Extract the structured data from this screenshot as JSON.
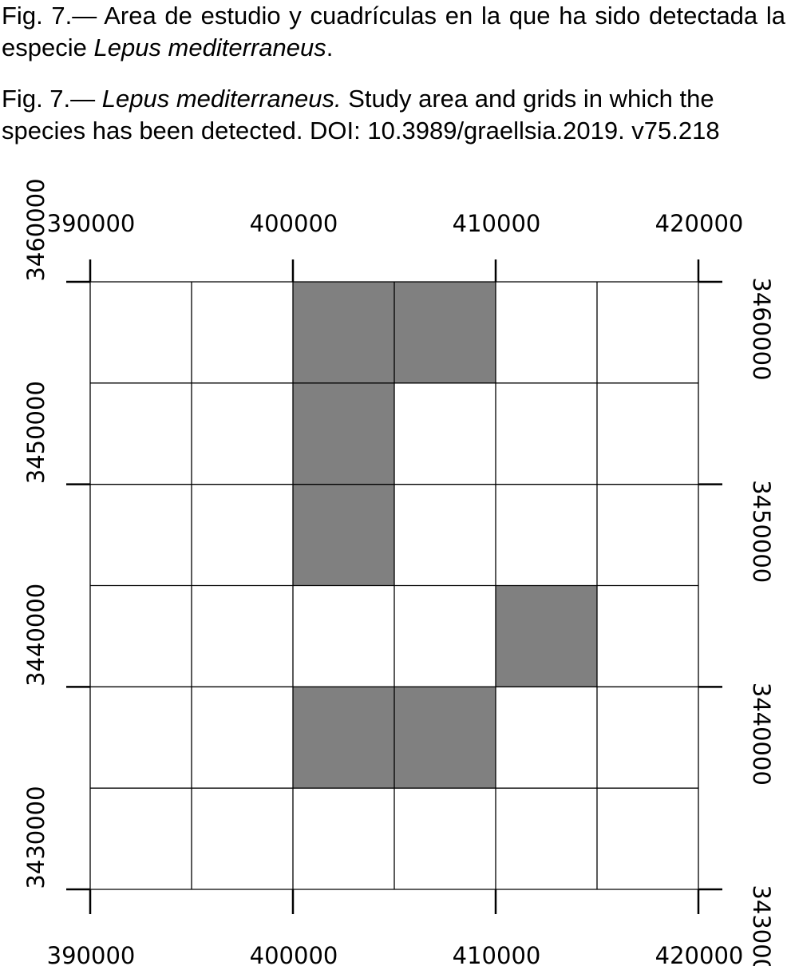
{
  "caption_es": {
    "prefix": "Fig. 7.— Area de estudio y cuadrículas en la que ha sido detectada la especie ",
    "species": "Lepus mediterraneus",
    "suffix": "."
  },
  "caption_en": {
    "prefix": "Fig. 7.— ",
    "species": "Lepus mediterraneus.",
    "suffix": " Study area and grids in which the species has been detected. DOI: 10.3989/graellsia.2019. v75.218"
  },
  "map": {
    "x_range": [
      390000,
      420000
    ],
    "y_range": [
      3430000,
      3460000
    ],
    "cell_size": 5000,
    "x_ticks": [
      390000,
      400000,
      410000,
      420000
    ],
    "y_ticks": [
      3430000,
      3440000,
      3450000,
      3460000
    ],
    "x_tick_labels": [
      "390000",
      "400000",
      "410000",
      "420000"
    ],
    "y_tick_labels": [
      "3430000",
      "3440000",
      "3450000",
      "3460000"
    ],
    "detected_color": "#808080",
    "empty_color": "#ffffff",
    "detected_cells": [
      {
        "x": 400000,
        "y": 3455000
      },
      {
        "x": 405000,
        "y": 3455000
      },
      {
        "x": 400000,
        "y": 3450000
      },
      {
        "x": 400000,
        "y": 3445000
      },
      {
        "x": 410000,
        "y": 3440000
      },
      {
        "x": 400000,
        "y": 3435000
      },
      {
        "x": 405000,
        "y": 3435000
      }
    ]
  }
}
